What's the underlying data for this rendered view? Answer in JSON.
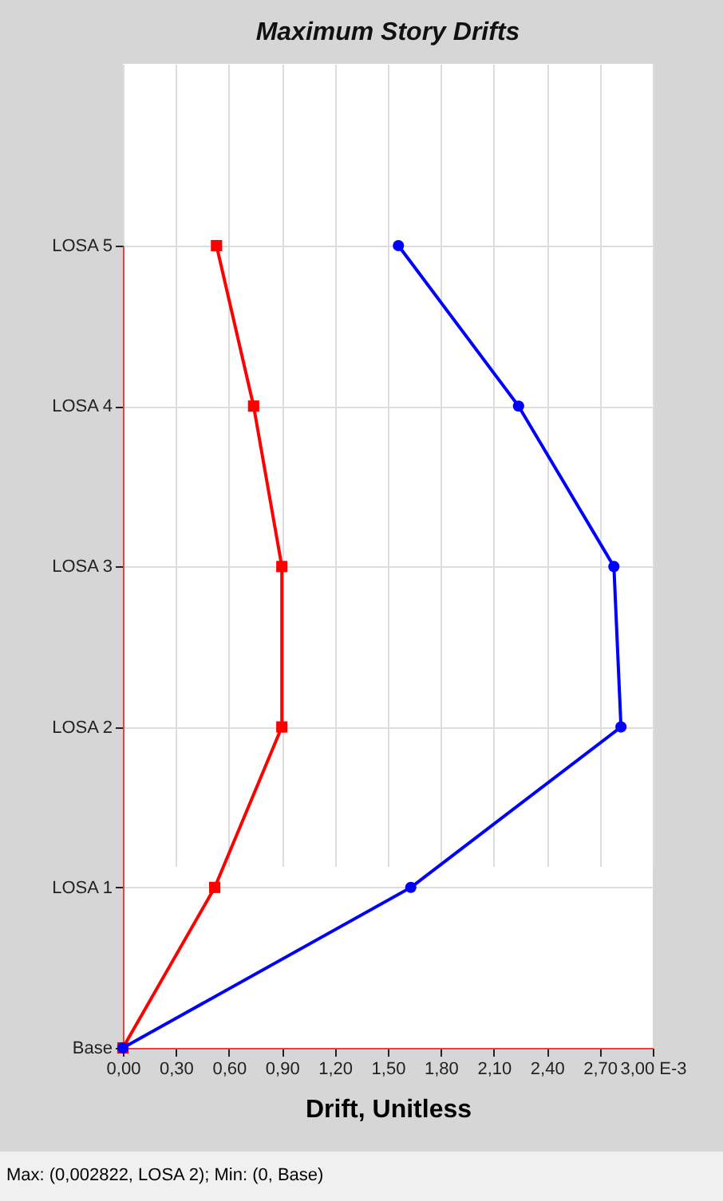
{
  "chart_data": {
    "type": "line",
    "title": "Maximum Story Drifts",
    "xlabel": "Drift, Unitless",
    "categories": [
      "LOSA 5",
      "LOSA 4",
      "LOSA 3",
      "LOSA 2",
      "LOSA 1",
      "Base"
    ],
    "orientation": "horizontal",
    "series": [
      {
        "color": "#ff0000",
        "marker": "square",
        "values": [
          0.53,
          0.74,
          0.9,
          0.9,
          0.52,
          0
        ]
      },
      {
        "color": "#0000ff",
        "marker": "circle",
        "values": [
          1.56,
          2.24,
          2.78,
          2.82,
          1.63,
          0
        ]
      }
    ],
    "xlim": [
      0,
      3
    ],
    "xticks": [
      {
        "value": 0,
        "label": "0,00"
      },
      {
        "value": 0.3,
        "label": "0,30"
      },
      {
        "value": 0.6,
        "label": "0,60"
      },
      {
        "value": 0.9,
        "label": "0,90"
      },
      {
        "value": 1.2,
        "label": "1,20"
      },
      {
        "value": 1.5,
        "label": "1,50"
      },
      {
        "value": 1.8,
        "label": "1,80"
      },
      {
        "value": 2.1,
        "label": "2,10"
      },
      {
        "value": 2.4,
        "label": "2,40"
      },
      {
        "value": 2.7,
        "label": "2,70"
      },
      {
        "value": 3,
        "label": "3,00 E-3"
      }
    ],
    "grid": true,
    "line_style": "solid",
    "annotations": [
      "Max: (0,002822, LOSA 2);  Min: (0, Base)"
    ]
  }
}
